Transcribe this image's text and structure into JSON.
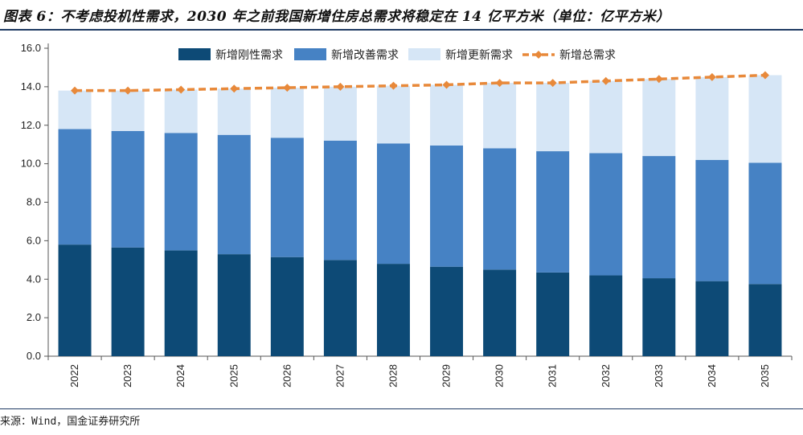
{
  "title": "图表 6：不考虑投机性需求，2030 年之前我国新增住房总需求将稳定在 14 亿平方米（单位：亿平方米）",
  "source": "来源：Wind，国金证券研究所",
  "colors": {
    "rigid": "#0d4a76",
    "improve": "#4682c4",
    "renew": "#d6e6f6",
    "total": "#e8893a"
  },
  "chart_data": {
    "type": "bar",
    "stacked": true,
    "categories": [
      "2022",
      "2023",
      "2024",
      "2025",
      "2026",
      "2027",
      "2028",
      "2029",
      "2030",
      "2031",
      "2032",
      "2033",
      "2034",
      "2035"
    ],
    "series": [
      {
        "name": "新增刚性需求",
        "type": "bar",
        "values": [
          5.8,
          5.65,
          5.5,
          5.3,
          5.15,
          5.0,
          4.8,
          4.65,
          4.5,
          4.35,
          4.2,
          4.05,
          3.9,
          3.75
        ]
      },
      {
        "name": "新增改善需求",
        "type": "bar",
        "values": [
          6.0,
          6.05,
          6.1,
          6.2,
          6.2,
          6.2,
          6.25,
          6.3,
          6.3,
          6.3,
          6.35,
          6.35,
          6.3,
          6.3
        ]
      },
      {
        "name": "新增更新需求",
        "type": "bar",
        "values": [
          2.0,
          2.1,
          2.25,
          2.4,
          2.6,
          2.8,
          3.0,
          3.15,
          3.4,
          3.55,
          3.75,
          4.0,
          4.3,
          4.55
        ]
      },
      {
        "name": "新增总需求",
        "type": "line",
        "values": [
          13.8,
          13.8,
          13.85,
          13.9,
          13.95,
          14.0,
          14.05,
          14.1,
          14.2,
          14.2,
          14.3,
          14.4,
          14.5,
          14.6
        ]
      }
    ],
    "yticks": [
      "0.0",
      "2.0",
      "4.0",
      "6.0",
      "8.0",
      "10.0",
      "12.0",
      "14.0",
      "16.0"
    ],
    "ylim": [
      0,
      16
    ],
    "legend": "top-center",
    "grid": false
  }
}
